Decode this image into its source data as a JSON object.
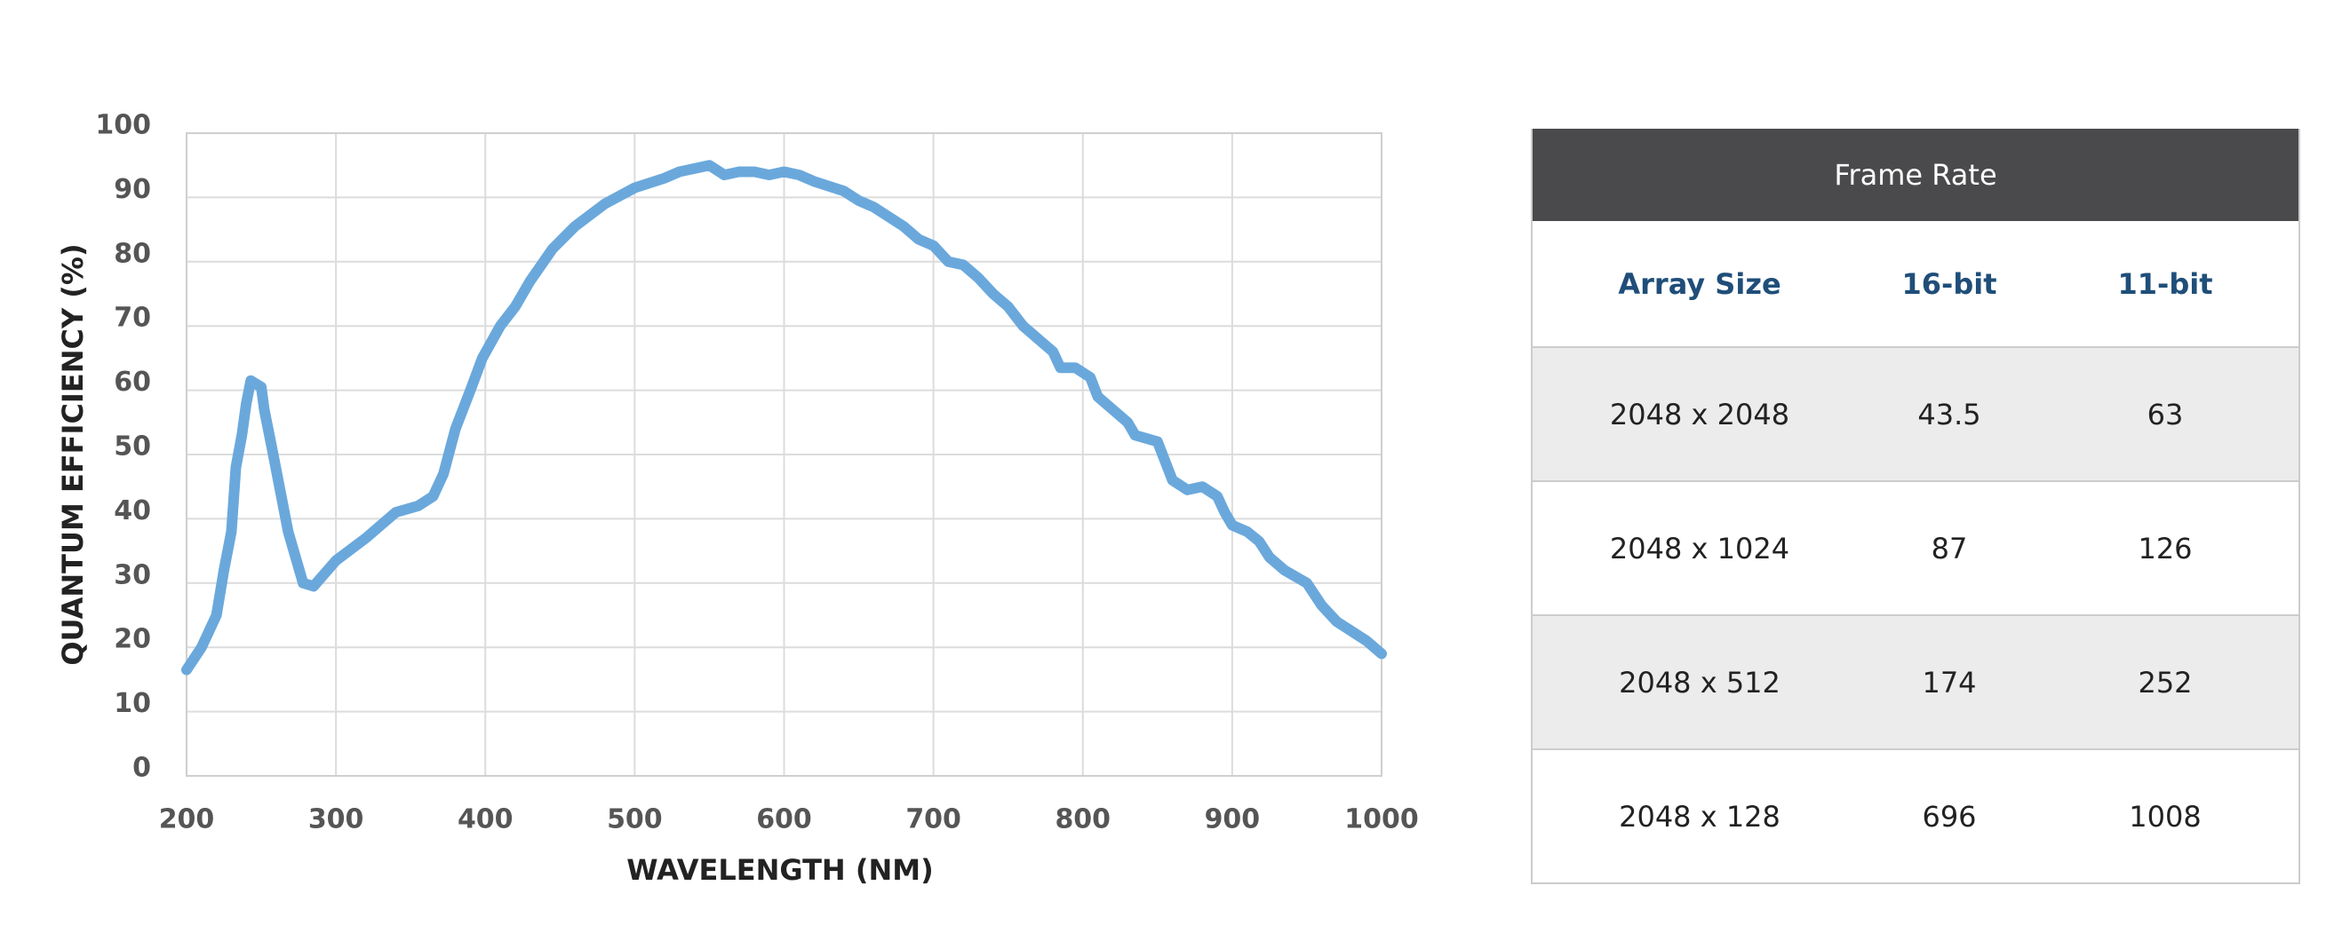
{
  "chart_data": {
    "type": "line",
    "xlabel": "WAVELENGTH (NM)",
    "ylabel": "QUANTUM EFFICIENCY (%)",
    "x": [
      200,
      210,
      220,
      225,
      230,
      233,
      237,
      240,
      243,
      250,
      252,
      258,
      263,
      268,
      273,
      278,
      285,
      300,
      320,
      340,
      355,
      365,
      372,
      380,
      390,
      398,
      410,
      420,
      430,
      445,
      460,
      480,
      500,
      520,
      530,
      550,
      560,
      570,
      580,
      590,
      600,
      610,
      620,
      640,
      650,
      660,
      670,
      680,
      690,
      700,
      710,
      720,
      730,
      740,
      750,
      760,
      770,
      780,
      785,
      795,
      805,
      810,
      820,
      830,
      835,
      850,
      855,
      860,
      870,
      880,
      890,
      895,
      900,
      910,
      918,
      925,
      935,
      950,
      960,
      970,
      980,
      990,
      1000
    ],
    "values": [
      16.5,
      20,
      25,
      32,
      38,
      48,
      53,
      58,
      61.5,
      60.5,
      57,
      50,
      44,
      38,
      34,
      30,
      29.5,
      33.5,
      37,
      41,
      42,
      43.5,
      47,
      54,
      60,
      65,
      70,
      73,
      77,
      82,
      85.5,
      89,
      91.5,
      93,
      94,
      95,
      93.5,
      94,
      94,
      93.5,
      94,
      93.5,
      92.5,
      91,
      89.5,
      88.5,
      87,
      85.5,
      83.5,
      82.5,
      80,
      79.5,
      77.5,
      75,
      73,
      70,
      68,
      66,
      63.5,
      63.5,
      62,
      59,
      57,
      55,
      53,
      52,
      49,
      46,
      44.5,
      45,
      43.5,
      41,
      39,
      38,
      36.5,
      34,
      32,
      30,
      26.5,
      24,
      22.5,
      21,
      19
    ],
    "color": "#6aa8dc",
    "xlim": [
      200,
      1000
    ],
    "xticks": [
      200,
      300,
      400,
      500,
      600,
      700,
      800,
      900,
      1000
    ],
    "ylim": [
      0,
      100
    ],
    "yticks": [
      0,
      10,
      20,
      30,
      40,
      50,
      60,
      70,
      80,
      90,
      100
    ],
    "grid": true
  },
  "table": {
    "title": "Frame Rate",
    "columns": [
      "Array Size",
      "16-bit",
      "11-bit"
    ],
    "rows": [
      [
        "2048 x 2048",
        43.5,
        63
      ],
      [
        "2048 x 1024",
        87,
        126
      ],
      [
        "2048 x 512",
        174,
        252
      ],
      [
        "2048 x 128",
        696,
        1008
      ]
    ]
  }
}
